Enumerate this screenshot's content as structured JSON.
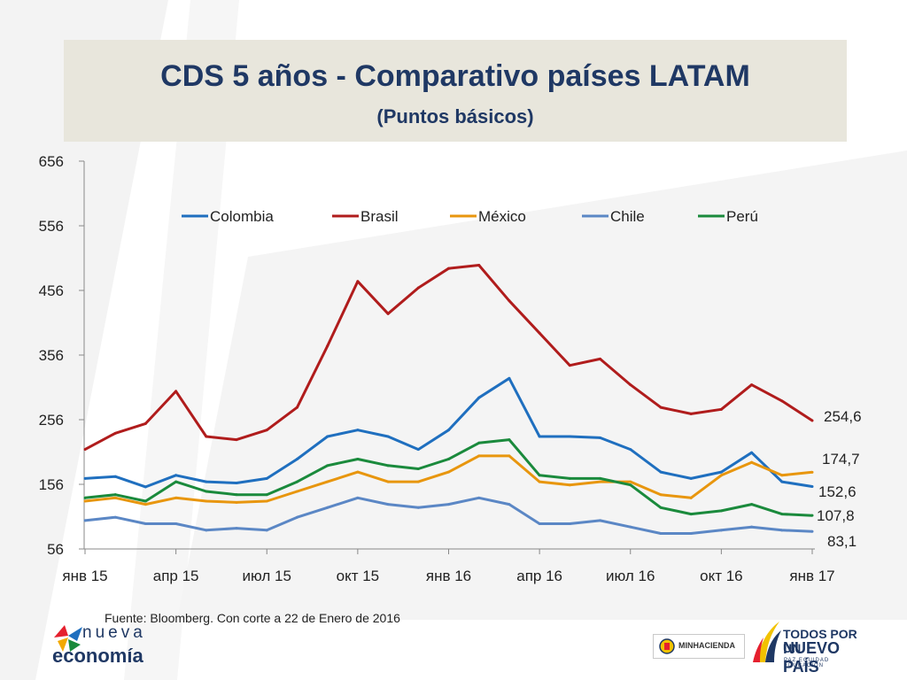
{
  "header": {
    "title": "CDS 5 años - Comparativo países LATAM",
    "subtitle": "(Puntos básicos)"
  },
  "source": "Fuente: Bloomberg. Con corte a 22 de Enero de 2016",
  "logos": {
    "left_line1": "nueva",
    "left_line2": "economía",
    "ministry": "MINHACIENDA",
    "gov_line1": "TODOS POR UN",
    "gov_line2": "NUEVO PAÍS",
    "gov_line3": "PAZ  EQUIDAD  EDUCACIÓN"
  },
  "chart_data": {
    "type": "line",
    "ylim": [
      56,
      656
    ],
    "y_ticks": [
      56,
      156,
      256,
      356,
      456,
      556,
      656
    ],
    "x_ticks": [
      "янв 15",
      "апр 15",
      "июл 15",
      "окт 15",
      "янв 16",
      "апр 16",
      "июл 16",
      "окт 16",
      "янв 17"
    ],
    "legend_position": "top",
    "x": [
      "янв 15",
      "фев 15",
      "мар 15",
      "апр 15",
      "май 15",
      "июн 15",
      "июл 15",
      "авг 15",
      "сен 15",
      "окт 15",
      "ноя 15",
      "дек 15",
      "янв 16",
      "фев 16",
      "мар 16",
      "апр 16",
      "май 16",
      "июн 16",
      "июл 16",
      "авг 16",
      "сен 16",
      "окт 16",
      "ноя 16",
      "дек 16",
      "янв 17"
    ],
    "series": [
      {
        "name": "Colombia",
        "color": "#1f6fbf",
        "values": [
          165,
          168,
          152,
          170,
          160,
          158,
          165,
          195,
          230,
          240,
          230,
          210,
          240,
          290,
          320,
          230,
          230,
          228,
          210,
          175,
          165,
          175,
          205,
          160,
          152.6
        ]
      },
      {
        "name": "Brasil",
        "color": "#b01c1c",
        "values": [
          210,
          235,
          250,
          300,
          230,
          225,
          240,
          275,
          370,
          470,
          420,
          460,
          490,
          495,
          440,
          390,
          340,
          350,
          310,
          275,
          265,
          272,
          310,
          285,
          254.6
        ]
      },
      {
        "name": "México",
        "color": "#e8960e",
        "values": [
          130,
          135,
          125,
          135,
          130,
          128,
          130,
          145,
          160,
          175,
          160,
          160,
          175,
          200,
          200,
          160,
          155,
          160,
          160,
          140,
          135,
          170,
          190,
          170,
          174.7
        ]
      },
      {
        "name": "Chile",
        "color": "#5b87c5",
        "values": [
          100,
          105,
          95,
          95,
          85,
          88,
          85,
          105,
          120,
          135,
          125,
          120,
          125,
          135,
          125,
          95,
          95,
          100,
          90,
          80,
          80,
          85,
          90,
          85,
          83.1
        ]
      },
      {
        "name": "Perú",
        "color": "#1a8a3c",
        "values": [
          135,
          140,
          130,
          160,
          145,
          140,
          140,
          160,
          185,
          195,
          185,
          180,
          195,
          220,
          225,
          170,
          165,
          165,
          155,
          120,
          110,
          115,
          125,
          110,
          107.8
        ]
      }
    ],
    "end_labels": [
      "254,6",
      "174,7",
      "152,6",
      "107,8",
      "83,1"
    ]
  }
}
